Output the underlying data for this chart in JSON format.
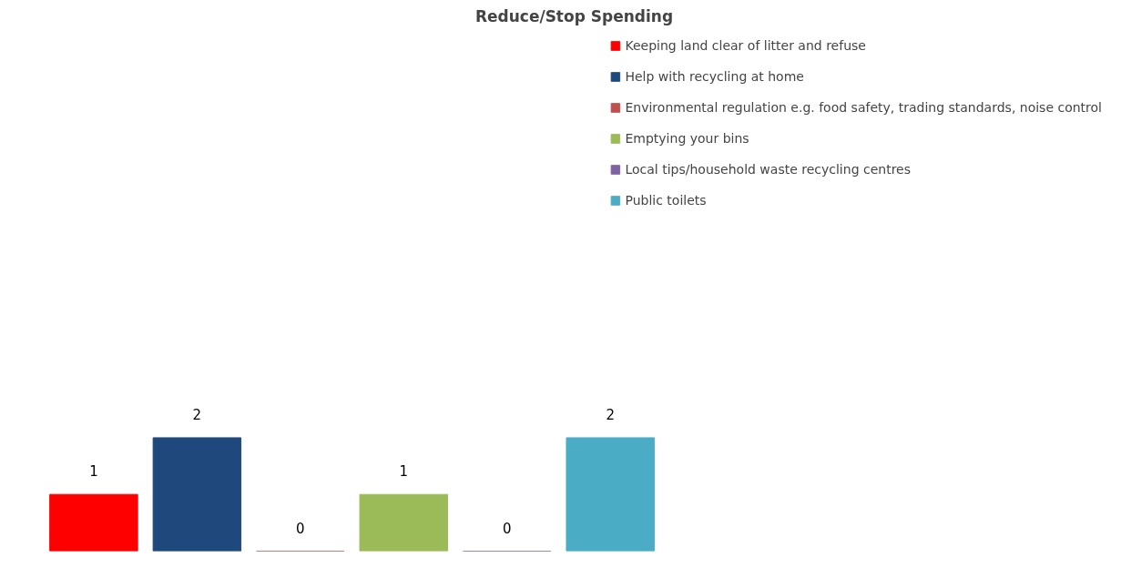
{
  "chart_data": {
    "type": "bar",
    "title": "Reduce/Stop Spending",
    "categories": [
      null
    ],
    "series": [
      {
        "name": "Keeping land clear of litter and refuse",
        "color": "#ff0000",
        "values": [
          1
        ]
      },
      {
        "name": "Help with recycling at home",
        "color": "#1f497d",
        "values": [
          2
        ]
      },
      {
        "name": "Environmental regulation e.g. food safety, trading standards, noise control",
        "color": "#c0504d",
        "values": [
          0
        ]
      },
      {
        "name": "Emptying your bins",
        "color": "#9bbb59",
        "values": [
          1
        ]
      },
      {
        "name": "Local tips/household waste recycling centres",
        "color": "#8064a2",
        "values": [
          0
        ]
      },
      {
        "name": "Public toilets",
        "color": "#4bacc6",
        "values": [
          2
        ]
      }
    ],
    "data_labels": true,
    "legend": "right",
    "tick_labels": false,
    "grid": false
  }
}
